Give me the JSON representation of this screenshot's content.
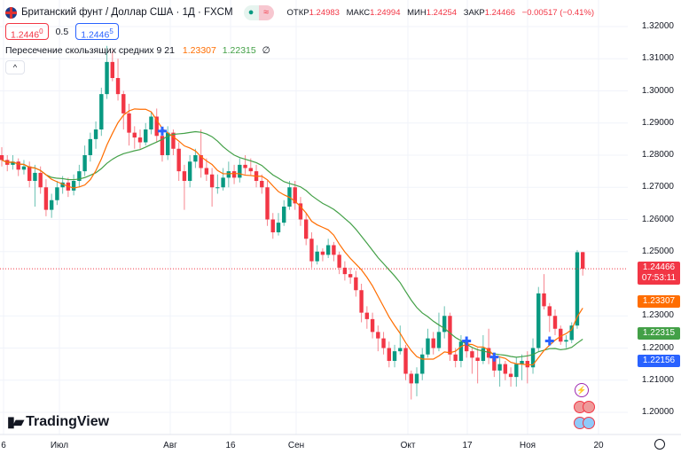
{
  "header": {
    "title": "Британский фунт / Доллар США · 1Д · FXCM",
    "market_status_icon": "green-dot-icon",
    "wave_icon": "≈",
    "ohlc": [
      {
        "key": "ОТКР",
        "value": "1.24983"
      },
      {
        "key": "МАКС",
        "value": "1.24994"
      },
      {
        "key": "МИН",
        "value": "1.24254"
      },
      {
        "key": "ЗАКР",
        "value": "1.24466"
      }
    ],
    "change": "−0.00517 (−0.41%)"
  },
  "quote": {
    "sell": "1.2446",
    "sell_small": "0",
    "spread": "0.5",
    "buy": "1.2446",
    "buy_small": "5"
  },
  "indicator": {
    "name": "Пересечение скользящих средних 9 21",
    "ma_fast": "1.23307",
    "ma_slow": "1.22315",
    "extra": "∅"
  },
  "collapse_icon": "^",
  "price_axis": {
    "ticks": [
      "1.32000",
      "1.31000",
      "1.30000",
      "1.29000",
      "1.28000",
      "1.27000",
      "1.26000",
      "1.25000",
      "1.23000",
      "1.22000",
      "1.21000",
      "1.20000"
    ],
    "current_price": "1.24466",
    "countdown": "07:53:11",
    "ma_fast_label": "1.23307",
    "ma_slow_label": "1.22315",
    "bid_label": "1.22156"
  },
  "time_axis": {
    "labels": [
      "6",
      "Июл",
      "Авг",
      "16",
      "Сен",
      "Окт",
      "17",
      "Ноя",
      "20"
    ]
  },
  "logo": "TradingView",
  "colors": {
    "up": "#089981",
    "down": "#f23645",
    "ma_fast": "#ff6d00",
    "ma_slow": "#43a047",
    "signal": "#2962ff",
    "price_line": "#f23645",
    "bid": "#2962ff"
  },
  "chart_data": {
    "type": "candlestick",
    "symbol": "GBPUSD",
    "interval": "1D",
    "ylim": [
      1.197,
      1.3215
    ],
    "grid": true,
    "ohlc": [
      [
        1.28,
        1.2825,
        1.2765,
        1.2785
      ],
      [
        1.2785,
        1.28,
        1.275,
        1.277
      ],
      [
        1.277,
        1.28,
        1.2755,
        1.278
      ],
      [
        1.278,
        1.279,
        1.2735,
        1.2755
      ],
      [
        1.2755,
        1.2785,
        1.274,
        1.2765
      ],
      [
        1.2765,
        1.278,
        1.27,
        1.272
      ],
      [
        1.272,
        1.277,
        1.264,
        1.2745
      ],
      [
        1.2745,
        1.2765,
        1.268,
        1.27
      ],
      [
        1.27,
        1.2725,
        1.261,
        1.263
      ],
      [
        1.263,
        1.268,
        1.2605,
        1.266
      ],
      [
        1.266,
        1.272,
        1.2645,
        1.27
      ],
      [
        1.27,
        1.2735,
        1.268,
        1.2715
      ],
      [
        1.2715,
        1.273,
        1.267,
        1.269
      ],
      [
        1.269,
        1.274,
        1.2675,
        1.272
      ],
      [
        1.272,
        1.277,
        1.27,
        1.275
      ],
      [
        1.275,
        1.283,
        1.2735,
        1.28
      ],
      [
        1.28,
        1.287,
        1.278,
        1.285
      ],
      [
        1.285,
        1.2905,
        1.282,
        1.288
      ],
      [
        1.288,
        1.301,
        1.286,
        1.299
      ],
      [
        1.299,
        1.314,
        1.2975,
        1.309
      ],
      [
        1.309,
        1.3125,
        1.303,
        1.304
      ],
      [
        1.304,
        1.31,
        1.297,
        1.299
      ],
      [
        1.299,
        1.3,
        1.288,
        1.293
      ],
      [
        1.293,
        1.296,
        1.283,
        1.287
      ],
      [
        1.287,
        1.289,
        1.282,
        1.2855
      ],
      [
        1.2855,
        1.288,
        1.282,
        1.284
      ],
      [
        1.284,
        1.29,
        1.283,
        1.288
      ],
      [
        1.288,
        1.2935,
        1.2865,
        1.292
      ],
      [
        1.292,
        1.2945,
        1.284,
        1.286
      ],
      [
        1.286,
        1.288,
        1.278,
        1.28
      ],
      [
        1.28,
        1.289,
        1.2785,
        1.287
      ],
      [
        1.287,
        1.288,
        1.28,
        1.282
      ],
      [
        1.282,
        1.284,
        1.272,
        1.275
      ],
      [
        1.275,
        1.277,
        1.263,
        1.272
      ],
      [
        1.272,
        1.28,
        1.27,
        1.278
      ],
      [
        1.278,
        1.282,
        1.276,
        1.28
      ],
      [
        1.28,
        1.288,
        1.273,
        1.276
      ],
      [
        1.276,
        1.279,
        1.272,
        1.274
      ],
      [
        1.274,
        1.276,
        1.264,
        1.27
      ],
      [
        1.27,
        1.274,
        1.268,
        1.27
      ],
      [
        1.27,
        1.276,
        1.269,
        1.273
      ],
      [
        1.273,
        1.278,
        1.27,
        1.275
      ],
      [
        1.275,
        1.277,
        1.271,
        1.273
      ],
      [
        1.273,
        1.279,
        1.2715,
        1.277
      ],
      [
        1.277,
        1.28,
        1.274,
        1.276
      ],
      [
        1.276,
        1.279,
        1.2735,
        1.275
      ],
      [
        1.275,
        1.277,
        1.27,
        1.272
      ],
      [
        1.272,
        1.274,
        1.268,
        1.27
      ],
      [
        1.27,
        1.272,
        1.258,
        1.26
      ],
      [
        1.26,
        1.262,
        1.254,
        1.256
      ],
      [
        1.256,
        1.262,
        1.255,
        1.259
      ],
      [
        1.259,
        1.266,
        1.258,
        1.264
      ],
      [
        1.264,
        1.272,
        1.263,
        1.27
      ],
      [
        1.27,
        1.272,
        1.263,
        1.265
      ],
      [
        1.265,
        1.267,
        1.258,
        1.26
      ],
      [
        1.26,
        1.262,
        1.252,
        1.254
      ],
      [
        1.254,
        1.256,
        1.245,
        1.247
      ],
      [
        1.247,
        1.252,
        1.246,
        1.25
      ],
      [
        1.25,
        1.251,
        1.247,
        1.249
      ],
      [
        1.249,
        1.254,
        1.248,
        1.252
      ],
      [
        1.252,
        1.253,
        1.247,
        1.249
      ],
      [
        1.249,
        1.25,
        1.243,
        1.245
      ],
      [
        1.245,
        1.247,
        1.241,
        1.243
      ],
      [
        1.243,
        1.245,
        1.24,
        1.242
      ],
      [
        1.242,
        1.244,
        1.236,
        1.238
      ],
      [
        1.238,
        1.24,
        1.228,
        1.231
      ],
      [
        1.231,
        1.233,
        1.226,
        1.229
      ],
      [
        1.229,
        1.231,
        1.223,
        1.225
      ],
      [
        1.225,
        1.227,
        1.219,
        1.223
      ],
      [
        1.223,
        1.225,
        1.218,
        1.22
      ],
      [
        1.22,
        1.222,
        1.214,
        1.216
      ],
      [
        1.216,
        1.221,
        1.214,
        1.219
      ],
      [
        1.219,
        1.227,
        1.218,
        1.22
      ],
      [
        1.22,
        1.221,
        1.21,
        1.212
      ],
      [
        1.212,
        1.213,
        1.204,
        1.209
      ],
      [
        1.209,
        1.214,
        1.205,
        1.212
      ],
      [
        1.212,
        1.22,
        1.21,
        1.218
      ],
      [
        1.218,
        1.226,
        1.217,
        1.223
      ],
      [
        1.223,
        1.225,
        1.218,
        1.22
      ],
      [
        1.22,
        1.231,
        1.219,
        1.225
      ],
      [
        1.225,
        1.233,
        1.223,
        1.23
      ],
      [
        1.23,
        1.231,
        1.216,
        1.218
      ],
      [
        1.218,
        1.22,
        1.214,
        1.216
      ],
      [
        1.216,
        1.224,
        1.214,
        1.222
      ],
      [
        1.222,
        1.223,
        1.217,
        1.219
      ],
      [
        1.219,
        1.22,
        1.212,
        1.217
      ],
      [
        1.217,
        1.22,
        1.209,
        1.216
      ],
      [
        1.216,
        1.224,
        1.215,
        1.22
      ],
      [
        1.22,
        1.226,
        1.215,
        1.217
      ],
      [
        1.217,
        1.218,
        1.211,
        1.213
      ],
      [
        1.213,
        1.217,
        1.208,
        1.215
      ],
      [
        1.215,
        1.216,
        1.21,
        1.212
      ],
      [
        1.212,
        1.214,
        1.208,
        1.211
      ],
      [
        1.211,
        1.217,
        1.208,
        1.215
      ],
      [
        1.215,
        1.218,
        1.21,
        1.216
      ],
      [
        1.216,
        1.219,
        1.209,
        1.214
      ],
      [
        1.214,
        1.223,
        1.212,
        1.22
      ],
      [
        1.22,
        1.239,
        1.219,
        1.237
      ],
      [
        1.237,
        1.243,
        1.232,
        1.233
      ],
      [
        1.233,
        1.234,
        1.225,
        1.23
      ],
      [
        1.23,
        1.232,
        1.224,
        1.226
      ],
      [
        1.226,
        1.227,
        1.221,
        1.222
      ],
      [
        1.222,
        1.224,
        1.22,
        1.2225
      ],
      [
        1.2225,
        1.228,
        1.2215,
        1.227
      ],
      [
        1.227,
        1.2505,
        1.226,
        1.2498
      ],
      [
        1.24983,
        1.24994,
        1.24254,
        1.24466
      ]
    ],
    "ma_periods": [
      9,
      21
    ],
    "cross_signals": [
      {
        "bar": 29,
        "price": 1.2875
      },
      {
        "bar": 84,
        "price": 1.2222
      },
      {
        "bar": 89,
        "price": 1.2172
      },
      {
        "bar": 99,
        "price": 1.2222
      }
    ]
  }
}
